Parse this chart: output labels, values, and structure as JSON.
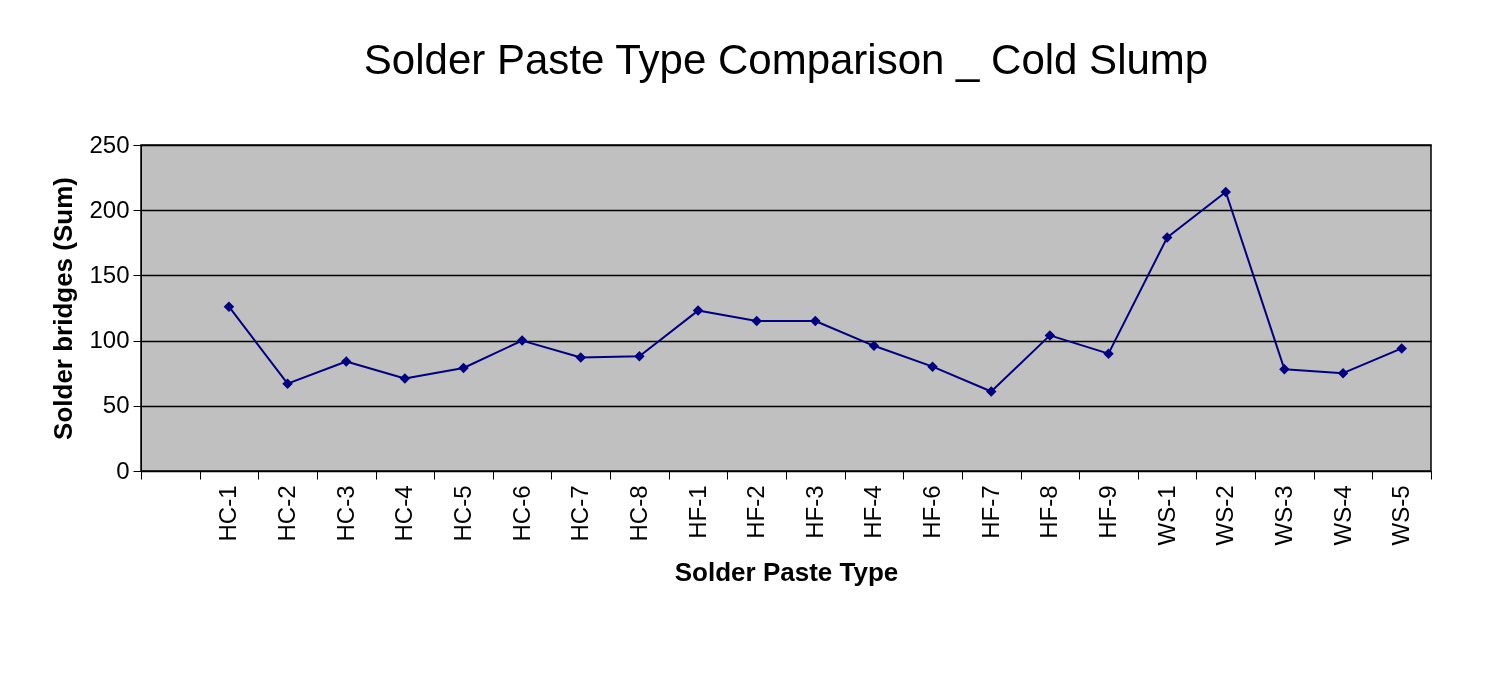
{
  "chart_data": {
    "type": "line",
    "title": "Solder Paste Type Comparison _ Cold Slump",
    "xlabel": "Solder Paste Type",
    "ylabel": "Solder bridges (Sum)",
    "categories": [
      null,
      "HC-1",
      "HC-2",
      "HC-3",
      "HC-4",
      "HC-5",
      "HC-6",
      "HC-7",
      "HC-8",
      "HF-1",
      "HF-2",
      "HF-3",
      "HF-4",
      "HF-6",
      "HF-7",
      "HF-8",
      "HF-9",
      "WS-1",
      "WS-2",
      "WS-3",
      "WS-4",
      "WS-5"
    ],
    "series": [
      {
        "color": "#000080",
        "values": [
          null,
          126,
          67,
          84,
          71,
          79,
          100,
          87,
          88,
          123,
          115,
          115,
          96,
          80,
          61,
          104,
          90,
          179,
          214,
          78,
          75,
          94
        ]
      }
    ],
    "ylim": [
      0,
      250
    ],
    "yticks": [
      0,
      50,
      100,
      150,
      200,
      250
    ],
    "grid": "y",
    "marker": "diamond",
    "line_style": "solid"
  }
}
